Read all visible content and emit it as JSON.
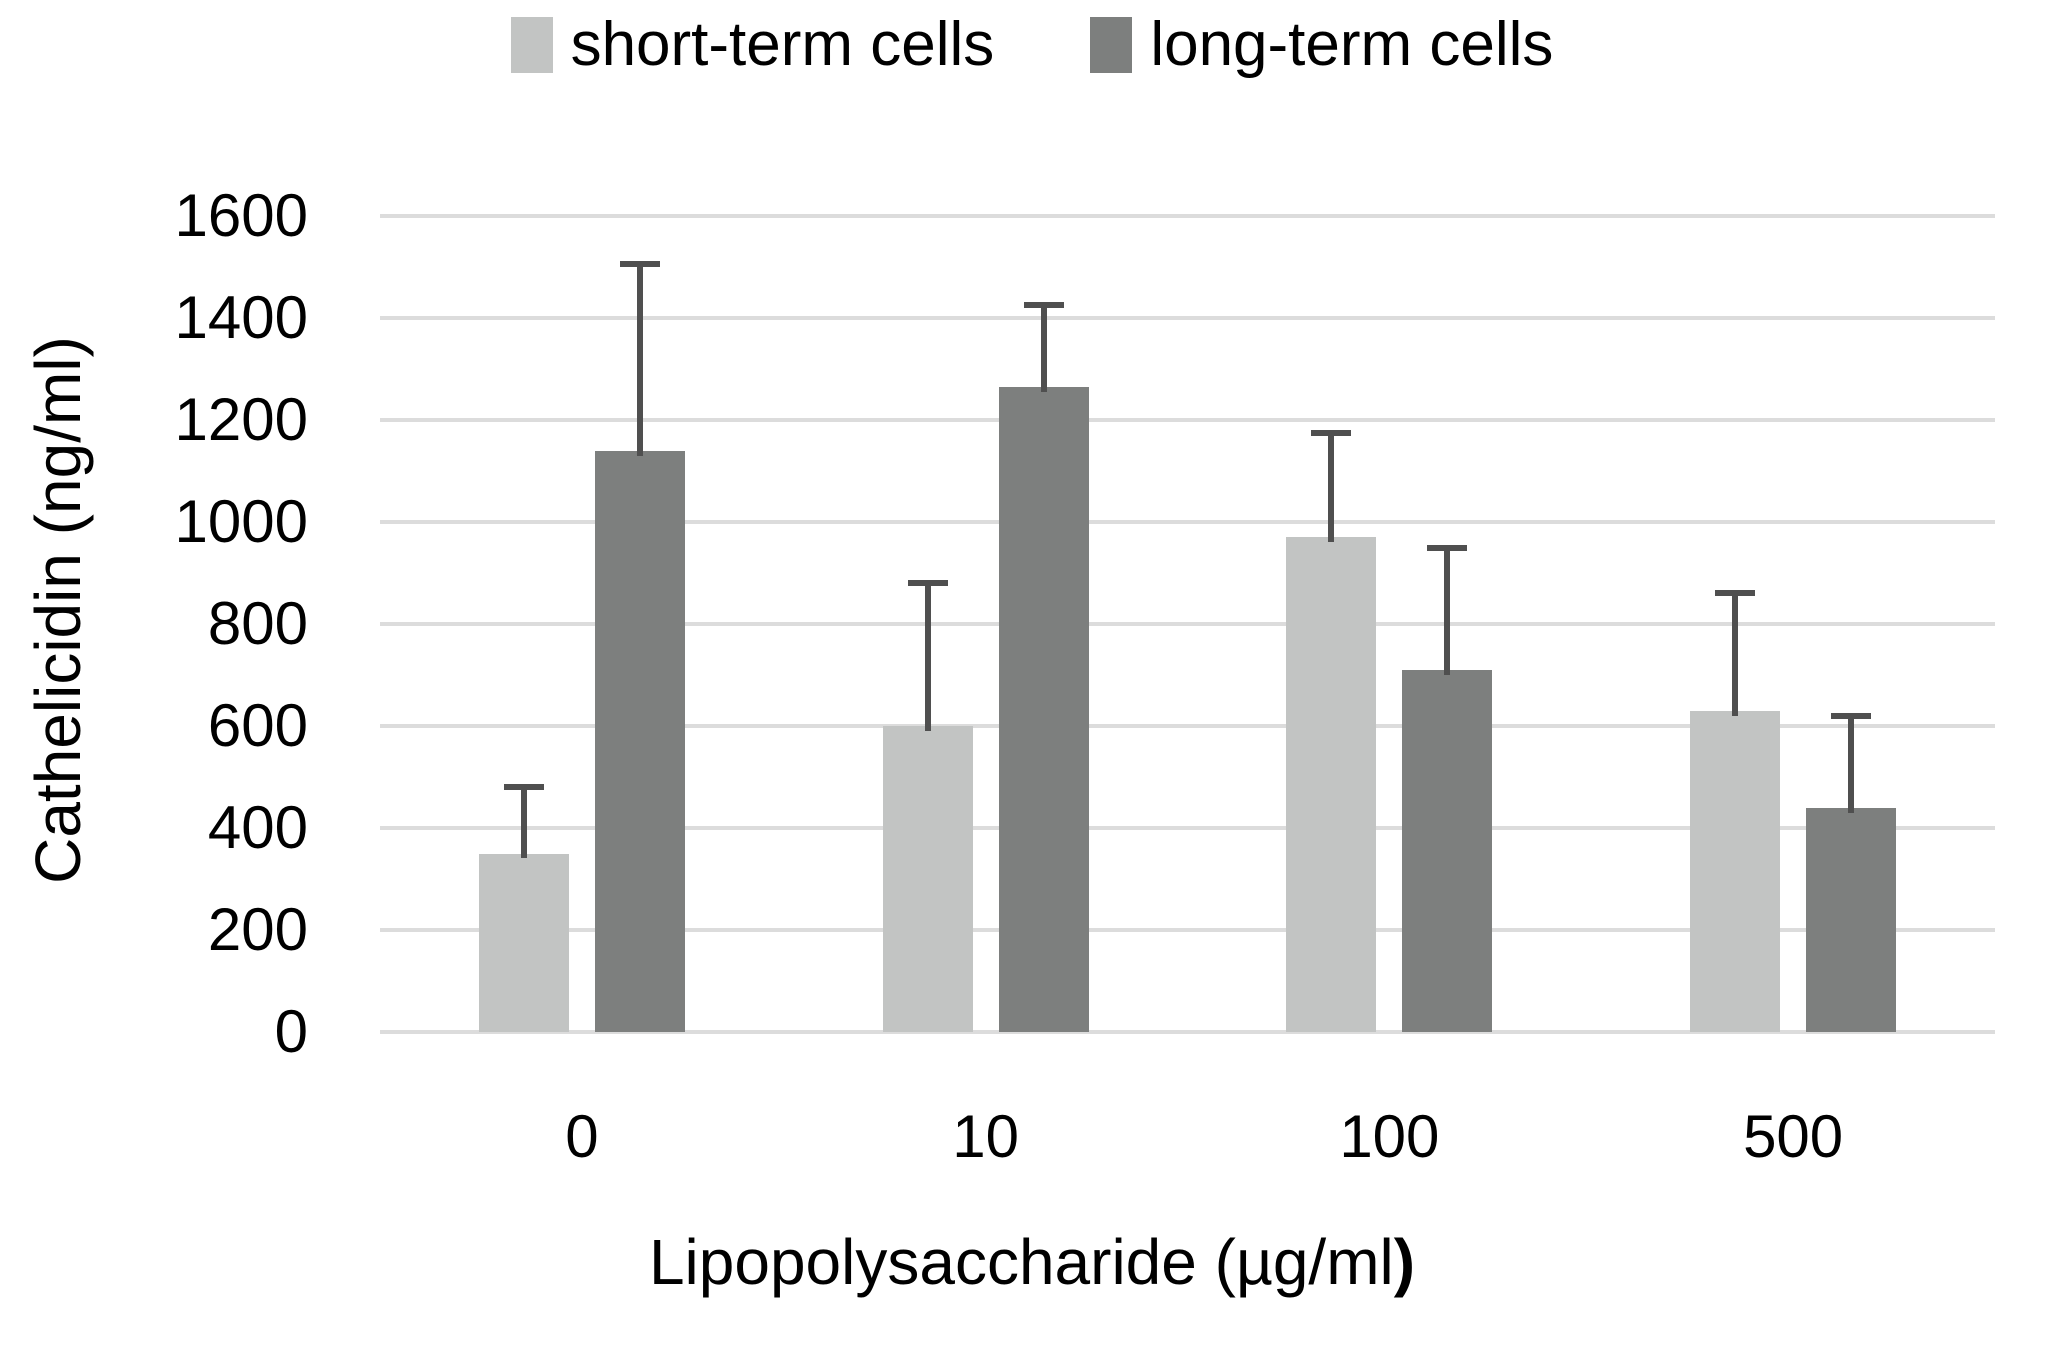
{
  "legend": {
    "items": [
      {
        "label": "short-term cells",
        "color": "#c2c4c3"
      },
      {
        "label": "long-term cells",
        "color": "#7d7f7e"
      }
    ]
  },
  "chart_data": {
    "type": "bar",
    "title": "",
    "xlabel": "Lipopolysaccharide (µg/ml)",
    "xlabel_main": "Lipopolysaccharide (µg/ml",
    "xlabel_bold_suffix": ")",
    "ylabel": "Cathelicidin (ng/ml)",
    "categories": [
      "0",
      "10",
      "100",
      "500"
    ],
    "y_ticks": [
      0,
      200,
      400,
      600,
      800,
      1000,
      1200,
      1400,
      1600
    ],
    "ylim": [
      0,
      1600
    ],
    "grid": true,
    "legend_position": "top",
    "bar_unit": "ng/ml",
    "series": [
      {
        "name": "short-term cells",
        "color": "#c2c4c3",
        "values": [
          350,
          600,
          970,
          630
        ],
        "error_plus": [
          130,
          280,
          205,
          230
        ]
      },
      {
        "name": "long-term cells",
        "color": "#7d7f7e",
        "values": [
          1140,
          1265,
          710,
          440
        ],
        "error_plus": [
          365,
          160,
          240,
          180
        ]
      }
    ],
    "error_bar_color": "#4f4f4f",
    "gridline_color": "#dcdcdc"
  }
}
